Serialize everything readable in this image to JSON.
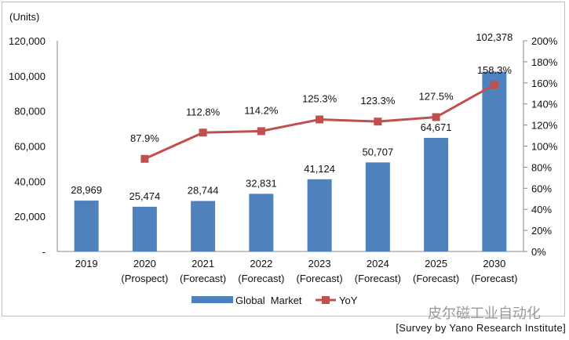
{
  "chart_data": {
    "type": "bar+line",
    "unit_label": "(Units)",
    "categories": [
      "2019",
      "2020",
      "2021",
      "2022",
      "2023",
      "2024",
      "2025",
      "2030"
    ],
    "category_sublabels": [
      "",
      "(Prospect)",
      "(Forecast)",
      "(Forecast)",
      "(Forecast)",
      "(Forecast)",
      "(Forecast)",
      "(Forecast)"
    ],
    "series": [
      {
        "name": "Global  Market",
        "type": "bar",
        "axis": "left",
        "color": "#4f81bd",
        "values": [
          28969,
          25474,
          28744,
          32831,
          41124,
          50707,
          64671,
          102378
        ],
        "labels": [
          "28,969",
          "25,474",
          "28,744",
          "32,831",
          "41,124",
          "50,707",
          "64,671",
          "102,378"
        ]
      },
      {
        "name": "YoY",
        "type": "line",
        "axis": "right",
        "color": "#c0504d",
        "values": [
          null,
          87.9,
          112.8,
          114.2,
          125.3,
          123.3,
          127.5,
          158.3
        ],
        "labels": [
          "",
          "87.9%",
          "112.8%",
          "114.2%",
          "125.3%",
          "123.3%",
          "127.5%",
          "158.3%"
        ]
      }
    ],
    "left_axis": {
      "ylim": [
        0,
        120000
      ],
      "ticks": [
        "-",
        "20,000",
        "40,000",
        "60,000",
        "80,000",
        "100,000",
        "120,000"
      ]
    },
    "right_axis": {
      "ylim": [
        0,
        200
      ],
      "ticks": [
        "0%",
        "20%",
        "40%",
        "60%",
        "80%",
        "100%",
        "120%",
        "140%",
        "160%",
        "180%",
        "200%"
      ]
    },
    "legend_position": "bottom",
    "grid": false
  },
  "source": "[Survey by Yano Research Institute]",
  "watermark": "皮尔磁工业自动化"
}
